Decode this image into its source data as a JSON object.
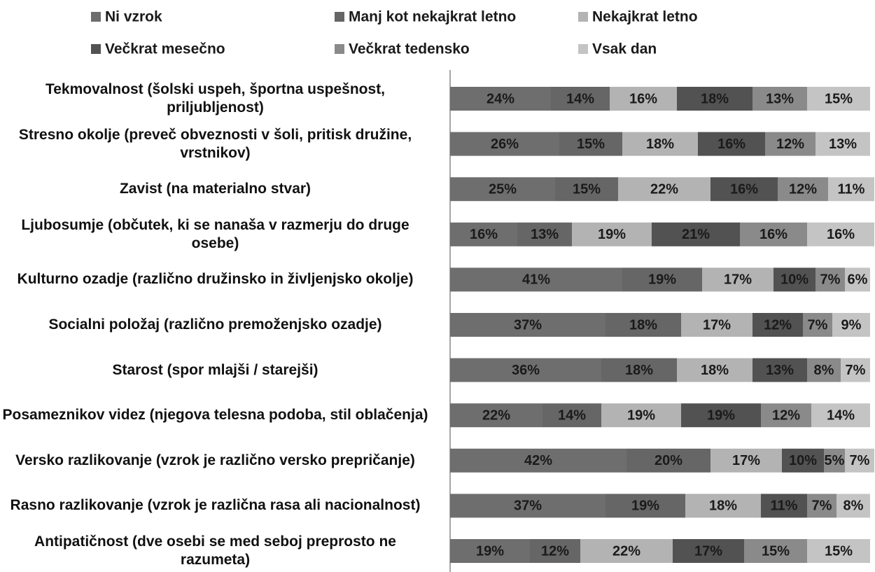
{
  "chart_data": {
    "type": "stacked-bar-horizontal",
    "categories": [
      "Tekmovalnost (šolski uspeh, športna uspešnost, priljubljenost)",
      "Stresno okolje (preveč obveznosti v šoli, pritisk družine, vrstnikov)",
      "Zavist (na materialno stvar)",
      "Ljubosumje (občutek, ki se nanaša v razmerju do druge osebe)",
      "Kulturno ozadje (različno družinsko in življenjsko okolje)",
      "Socialni položaj (različno premoženjsko ozadje)",
      "Starost (spor mlajši / starejši)",
      "Posameznikov videz (njegova telesna podoba, stil oblačenja)",
      "Versko razlikovanje (vzrok je različno versko prepričanje)",
      "Rasno razlikovanje (vzrok je različna rasa ali nacionalnost)",
      "Antipatičnost (dve osebi se med seboj preprosto ne razumeta)"
    ],
    "series": [
      {
        "name": "Ni vzrok",
        "color": "#6e6e6e",
        "values": [
          24,
          26,
          25,
          16,
          41,
          37,
          36,
          22,
          42,
          37,
          19
        ],
        "value_labels": [
          "24%",
          "26%",
          "25%",
          "16%",
          "41%",
          "37%",
          "36%",
          "22%",
          "42%",
          "37%",
          "19%"
        ]
      },
      {
        "name": "Manj kot nekajkrat letno",
        "color": "#666666",
        "values": [
          14,
          15,
          15,
          13,
          19,
          18,
          18,
          14,
          20,
          19,
          12
        ],
        "value_labels": [
          "14%",
          "15%",
          "15%",
          "13%",
          "19%",
          "18%",
          "18%",
          "14%",
          "20%",
          "19%",
          "12%"
        ]
      },
      {
        "name": "Nekajkrat letno",
        "color": "#b3b3b3",
        "values": [
          16,
          18,
          22,
          19,
          17,
          17,
          18,
          19,
          17,
          18,
          22
        ],
        "value_labels": [
          "16%",
          "18%",
          "22%",
          "19%",
          "17%",
          "17%",
          "18%",
          "19%",
          "17%",
          "18%",
          "22%"
        ]
      },
      {
        "name": "Večkrat mesečno",
        "color": "#525252",
        "values": [
          18,
          16,
          16,
          21,
          10,
          12,
          13,
          19,
          10,
          11,
          17
        ],
        "value_labels": [
          "18%",
          "16%",
          "16%",
          "21%",
          "10%",
          "12%",
          "13%",
          "19%",
          "10%",
          "11%",
          "17%"
        ]
      },
      {
        "name": "Večkrat tedensko",
        "color": "#8a8a8a",
        "values": [
          13,
          12,
          12,
          16,
          7,
          7,
          8,
          12,
          5,
          7,
          15
        ],
        "value_labels": [
          "13%",
          "12%",
          "12%",
          "16%",
          "7%",
          "7%",
          "8%",
          "12%",
          "5%",
          "7%",
          "15%"
        ]
      },
      {
        "name": "Vsak dan",
        "color": "#c4c4c4",
        "values": [
          15,
          13,
          11,
          16,
          6,
          9,
          7,
          14,
          7,
          8,
          15
        ],
        "value_labels": [
          "15%",
          "13%",
          "11%",
          "16%",
          "6%",
          "9%",
          "7%",
          "14%",
          "7%",
          "8%",
          "15%"
        ]
      }
    ],
    "xlim": [
      0,
      100
    ]
  }
}
